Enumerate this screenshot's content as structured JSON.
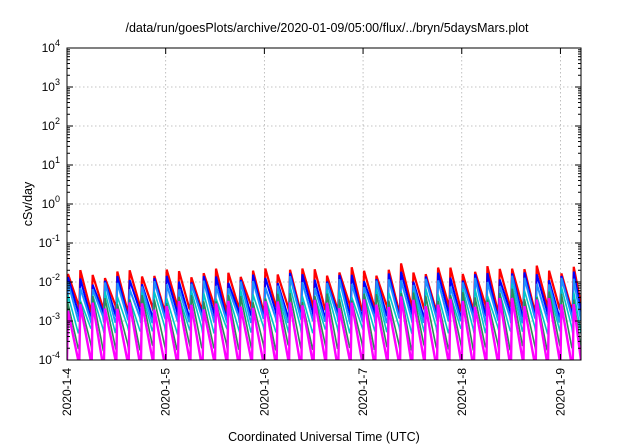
{
  "chart_data": {
    "type": "line",
    "title": "/data/run/goesPlots/archive/2020-01-09/05:00/flux/../bryn/5daysMars.plot",
    "xlabel": "Coordinated Universal Time (UTC)",
    "ylabel": "cSv/day",
    "yscale": "log",
    "ylim": [
      0.0001,
      10000
    ],
    "xlim": [
      "2020-01-04",
      "2020-01-09 05:00"
    ],
    "x_ticks": [
      "2020-1-4",
      "2020-1-5",
      "2020-1-6",
      "2020-1-7",
      "2020-1-8",
      "2020-1-9"
    ],
    "y_ticks": [
      {
        "base": "10",
        "exp": "-4"
      },
      {
        "base": "10",
        "exp": "-3"
      },
      {
        "base": "10",
        "exp": "-2"
      },
      {
        "base": "10",
        "exp": "-1"
      },
      {
        "base": "10",
        "exp": "0"
      },
      {
        "base": "10",
        "exp": "1"
      },
      {
        "base": "10",
        "exp": "2"
      },
      {
        "base": "10",
        "exp": "3"
      },
      {
        "base": "10",
        "exp": "4"
      }
    ],
    "grid": true,
    "cycles_per_day": 8,
    "series": [
      {
        "color": "#ff0000",
        "peak": 0.016,
        "floor": 0.0022,
        "width": 2.2
      },
      {
        "color": "#0000ff",
        "peak": 0.011,
        "floor": 0.0015,
        "width": 2.0
      },
      {
        "color": "#1e90ff",
        "peak": 0.008,
        "floor": 0.0011,
        "width": 2.0
      },
      {
        "color": "#00c8c8",
        "peak": 0.0045,
        "floor": 0.0006,
        "width": 1.6
      },
      {
        "color": "#2e8b57",
        "peak": 0.0035,
        "floor": 0.00022,
        "width": 1.6
      },
      {
        "color": "#ff00ff",
        "peak": 0.0024,
        "floor": 9e-05,
        "width": 2.4
      }
    ]
  }
}
